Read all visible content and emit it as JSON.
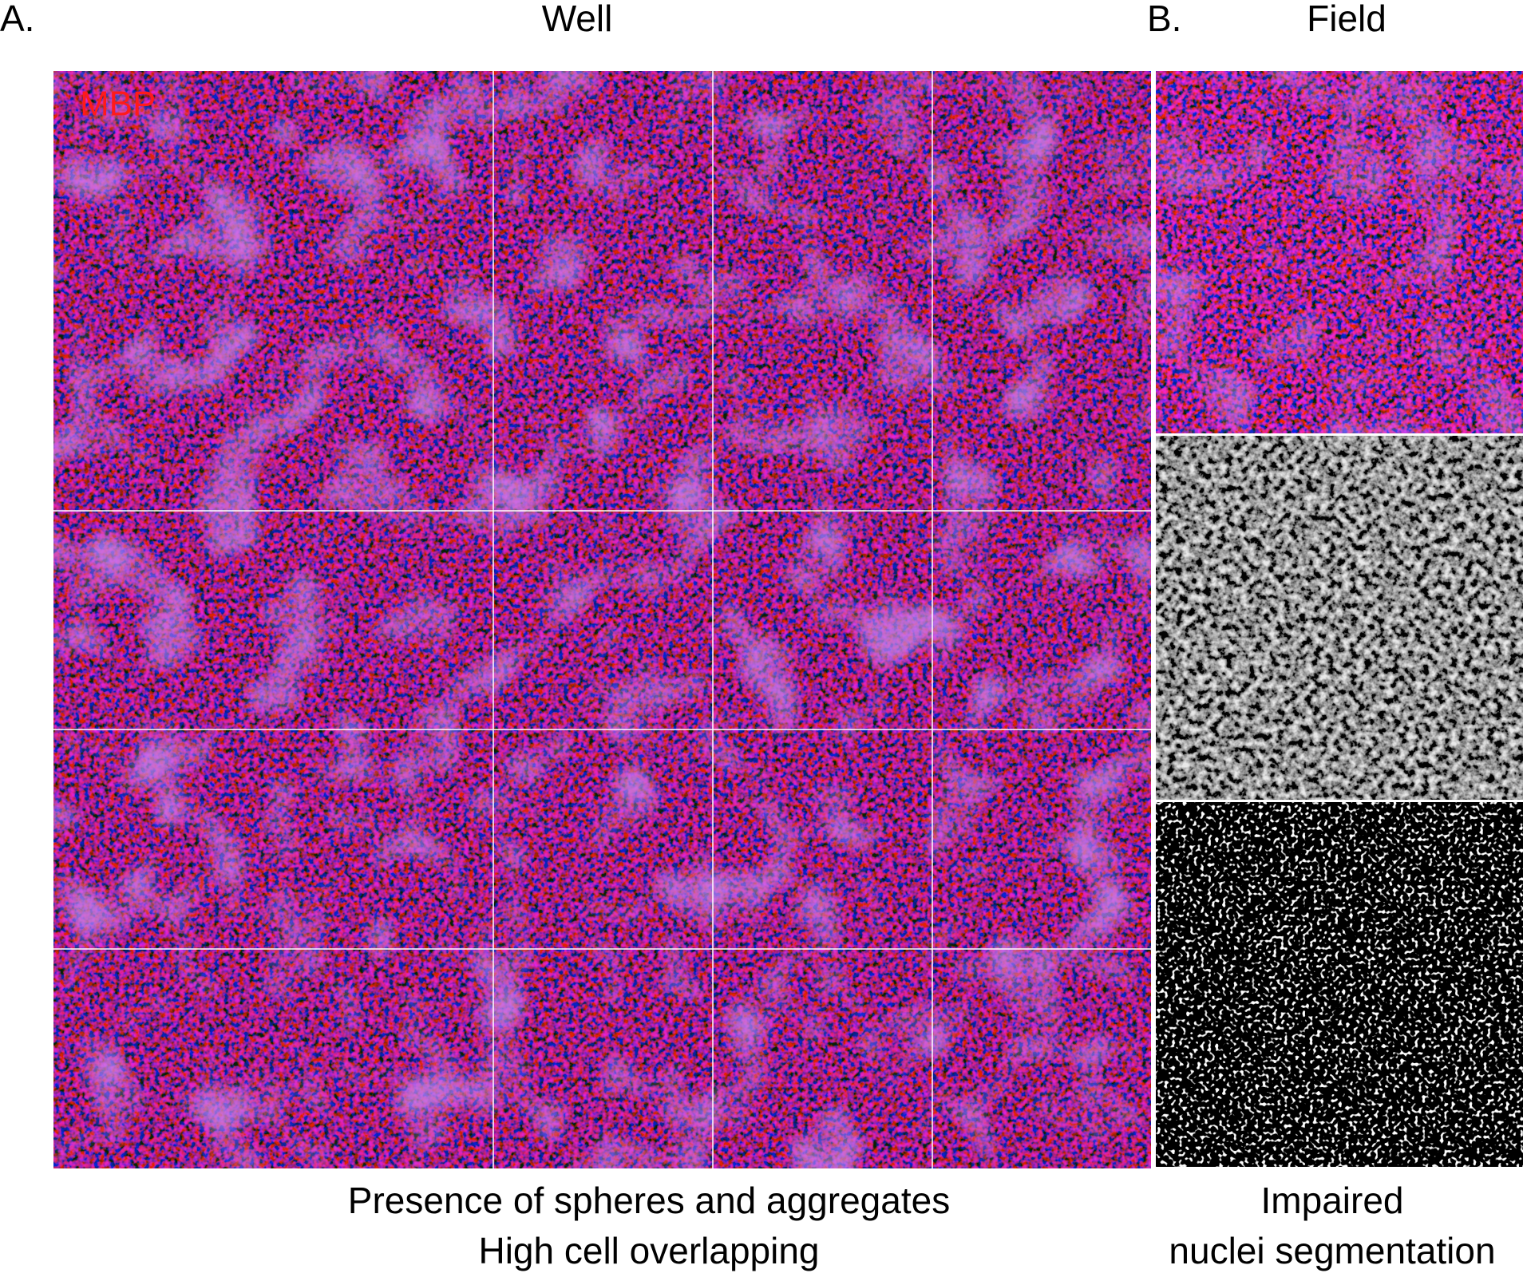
{
  "panel_a": {
    "label": "A.",
    "title": "Well",
    "stain_label": "MBP",
    "caption": [
      "Presence of spheres and aggregates",
      "High cell overlapping"
    ]
  },
  "panel_b": {
    "label": "B.",
    "title": "Field",
    "caption": [
      "Impaired",
      "nuclei segmentation"
    ]
  }
}
